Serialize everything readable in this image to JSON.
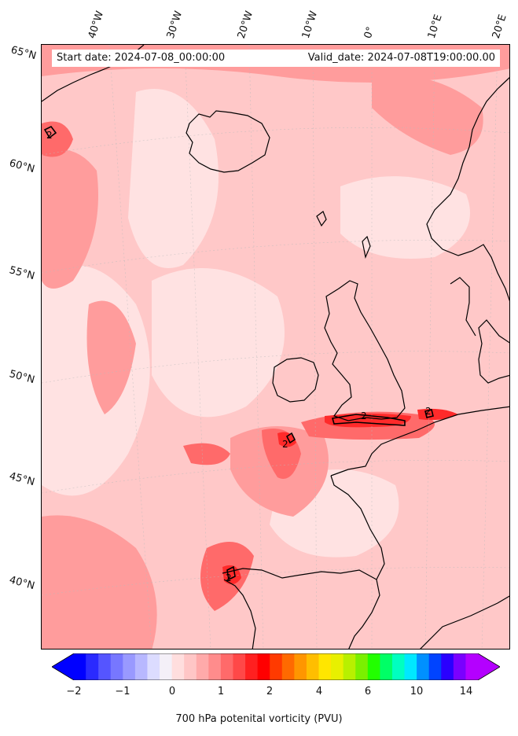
{
  "header": {
    "start_date": "Start date: 2024-07-08_00:00:00",
    "valid_date": "Valid_date: 2024-07-08T19:00:00.00"
  },
  "lat_labels": [
    "65°N",
    "60°N",
    "55°N",
    "50°N",
    "45°N",
    "40°N"
  ],
  "lon_labels": [
    "40°W",
    "30°W",
    "20°W",
    "10°W",
    "0°",
    "10°E",
    "20°E"
  ],
  "contour_labels": [
    "2",
    "2",
    "2",
    "2",
    "2"
  ],
  "colorbar": {
    "label": "700 hPa potenital vorticity (PVU)",
    "ticks": [
      "−2",
      "−1",
      "0",
      "1",
      "2",
      "4",
      "6",
      "10",
      "14"
    ],
    "colors": [
      "#0000ff",
      "#2a2aff",
      "#5555ff",
      "#7777ff",
      "#9999ff",
      "#b8b8ff",
      "#dcdcff",
      "#f4f0f8",
      "#ffdede",
      "#ffc6c6",
      "#ffaaaa",
      "#ff8c8c",
      "#ff6a6a",
      "#ff4848",
      "#ff2020",
      "#ff0000",
      "#ff3a00",
      "#ff6a00",
      "#ff9600",
      "#ffbe00",
      "#ffe600",
      "#e8f000",
      "#b8f000",
      "#7af000",
      "#22ff00",
      "#00ff66",
      "#00ffc0",
      "#00e8ff",
      "#0090ff",
      "#0044ff",
      "#2a00ff",
      "#7a00ff",
      "#b400ff"
    ]
  },
  "map_colors": {
    "background": "#ffc8c8",
    "light": "#ffe2e2",
    "medium": "#ff9c9c",
    "strong": "#ff6a6a",
    "intense": "#ff2a2a",
    "coast": "#000000"
  }
}
